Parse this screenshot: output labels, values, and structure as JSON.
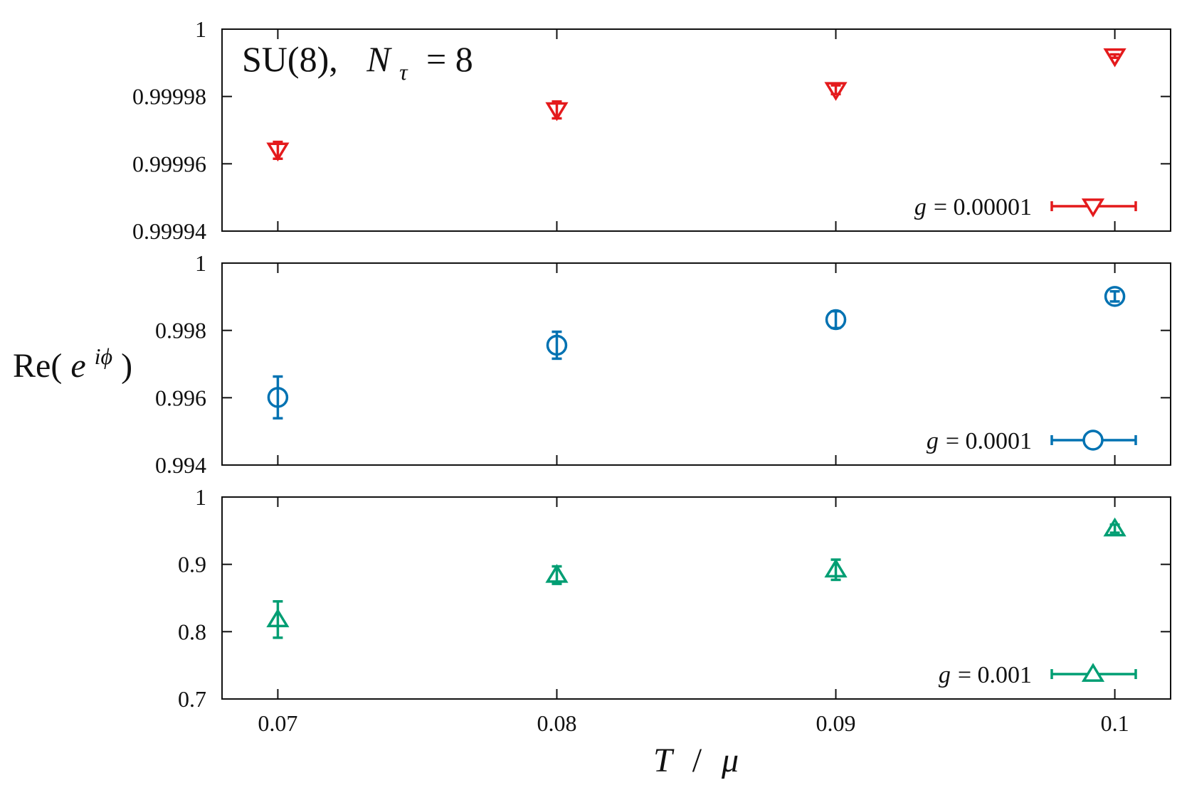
{
  "chart_data": {
    "type": "scatter",
    "title_main": "SU(8),",
    "title_n": "N",
    "title_sub": "τ",
    "title_eq": "= 8",
    "ylabel_re": "Re(",
    "ylabel_e": "e",
    "ylabel_sup": "iϕ",
    "ylabel_close": ")",
    "xlabel_T": "T",
    "xlabel_slash": "/",
    "xlabel_mu": "μ",
    "xlim": [
      0.068,
      0.102
    ],
    "x_ticks": [
      0.07,
      0.08,
      0.09,
      0.1
    ],
    "x_tick_labels": [
      "0.07",
      "0.08",
      "0.09",
      "0.1"
    ],
    "panels": [
      {
        "series_name": "g = 0.00001",
        "legend_g": "g",
        "legend_value": "= 0.00001",
        "color": "#e41a1c",
        "marker": "triangle-down",
        "ylim": [
          0.99994,
          1.0
        ],
        "y_ticks": [
          0.99994,
          0.99996,
          0.99998,
          1.0
        ],
        "y_tick_labels": [
          "0.99994",
          "0.99996",
          "0.99998",
          "1"
        ],
        "x": [
          0.07,
          0.08,
          0.09,
          0.1
        ],
        "y": [
          0.999964,
          0.999976,
          0.999982,
          0.999992
        ],
        "yerr": [
          2.5e-06,
          2.5e-06,
          1.3e-06,
          5e-07
        ]
      },
      {
        "series_name": "g = 0.0001",
        "legend_g": "g",
        "legend_value": "= 0.0001",
        "color": "#0072b2",
        "marker": "circle",
        "ylim": [
          0.994,
          1.0
        ],
        "y_ticks": [
          0.994,
          0.996,
          0.998,
          1.0
        ],
        "y_tick_labels": [
          "0.994",
          "0.996",
          "0.998",
          "1"
        ],
        "x": [
          0.07,
          0.08,
          0.09,
          0.1
        ],
        "y": [
          0.99601,
          0.99756,
          0.99832,
          0.99901
        ],
        "yerr": [
          0.00062,
          0.0004,
          0.00025,
          0.00015
        ]
      },
      {
        "series_name": "g = 0.001",
        "legend_g": "g",
        "legend_value": "= 0.001",
        "color": "#009e73",
        "marker": "triangle-up",
        "ylim": [
          0.7,
          1.0
        ],
        "y_ticks": [
          0.7,
          0.8,
          0.9,
          1.0
        ],
        "y_tick_labels": [
          "0.7",
          "0.8",
          "0.9",
          "1"
        ],
        "x": [
          0.07,
          0.08,
          0.09,
          0.1
        ],
        "y": [
          0.818,
          0.884,
          0.892,
          0.953
        ],
        "yerr": [
          0.027,
          0.013,
          0.015,
          0.006
        ]
      }
    ]
  }
}
